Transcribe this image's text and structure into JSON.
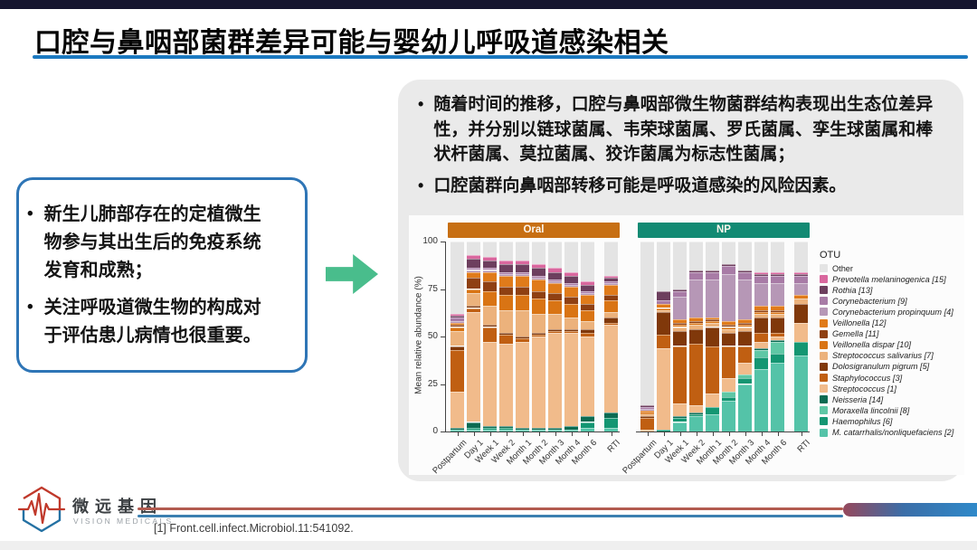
{
  "title": "口腔与鼻咽部菌群差异可能与婴幼儿呼吸道感染相关",
  "left_box": {
    "bullets": [
      "新生儿肺部存在的定植微生物参与其出生后的免疫系统发育和成熟；",
      "关注呼吸道微生物的构成对于评估患儿病情也很重要。"
    ]
  },
  "right_panel": {
    "bullets": [
      "随着时间的推移，口腔与鼻咽部微生物菌群结构表现出生态位差异性，并分别以链球菌属、韦荣球菌属、罗氏菌属、孪生球菌属和棒状杆菌属、莫拉菌属、狡诈菌属为标志性菌属；",
      "口腔菌群向鼻咽部转移可能是呼吸道感染的风险因素。"
    ]
  },
  "footer": {
    "logo_cn": "微远基因",
    "logo_en": "VISION MEDICALS",
    "citation": "[1]  Front.cell.infect.Microbiol.11:541092."
  },
  "chart_data": {
    "type": "bar",
    "subtype": "stacked-100-percent",
    "ylabel": "Mean relative abundance (%)",
    "ylim": [
      0,
      100
    ],
    "yticks": [
      0,
      25,
      50,
      75,
      100
    ],
    "legend_title": "OTU",
    "legend_position": "right",
    "grid": false,
    "categories": [
      "Postpartum",
      "Day 1",
      "Week 1",
      "Week 2",
      "Month 1",
      "Month 2",
      "Month 3",
      "Month 4",
      "Month 6",
      "RTI"
    ],
    "otus": [
      {
        "name": "M. catarrhalis/nonliquefaciens [2]",
        "color": "#54c3a8",
        "italic": true
      },
      {
        "name": "Haemophilus [6]",
        "color": "#149672",
        "italic": true
      },
      {
        "name": "Moraxella lincolnii [8]",
        "color": "#5fc7a5",
        "italic": true
      },
      {
        "name": "Neisseria [14]",
        "color": "#0c6b52",
        "italic": true
      },
      {
        "name": "Streptococcus [1]",
        "color": "#f1bb8b",
        "italic": true
      },
      {
        "name": "Staphylococcus [3]",
        "color": "#c05f12",
        "italic": true
      },
      {
        "name": "Dolosigranulum pigrum [5]",
        "color": "#80380a",
        "italic": true
      },
      {
        "name": "Streptococcus salivarius [7]",
        "color": "#ecb27c",
        "italic": true
      },
      {
        "name": "Veillonella dispar [10]",
        "color": "#d97414",
        "italic": true
      },
      {
        "name": "Gemella [11]",
        "color": "#8f4012",
        "italic": true
      },
      {
        "name": "Veillonella [12]",
        "color": "#e07b1a",
        "italic": true
      },
      {
        "name": "Corynebacterium propinquum [4]",
        "color": "#b697b6",
        "italic": true
      },
      {
        "name": "Corynebacterium [9]",
        "color": "#a87ba6",
        "italic": true
      },
      {
        "name": "Rothia [13]",
        "color": "#6d3f5e",
        "italic": true
      },
      {
        "name": "Prevotella melaninogenica [15]",
        "color": "#d9679e",
        "italic": true
      },
      {
        "name": "Other",
        "color": "#e4e4e4",
        "italic": false
      }
    ],
    "legend_display_order": [
      15,
      14,
      13,
      12,
      11,
      10,
      9,
      8,
      7,
      6,
      5,
      4,
      3,
      2,
      1,
      0
    ],
    "panels": [
      {
        "label": "Oral",
        "header_color": "#c76f13",
        "series": [
          [
            1,
            1,
            1,
            1,
            1,
            1,
            1,
            1,
            2,
            2
          ],
          [
            0,
            1,
            1,
            1,
            0,
            0,
            0,
            0,
            3,
            5
          ],
          [
            0,
            0,
            0,
            0,
            0,
            0,
            0,
            0,
            0,
            0
          ],
          [
            1,
            3,
            1,
            1,
            1,
            1,
            1,
            2,
            3,
            3
          ],
          [
            19,
            58,
            44,
            43,
            45,
            48,
            50,
            49,
            42,
            46
          ],
          [
            22,
            2,
            8,
            5,
            2,
            1,
            1,
            1,
            2,
            1
          ],
          [
            2,
            1,
            1,
            1,
            1,
            1,
            1,
            1,
            2,
            3
          ],
          [
            8,
            7,
            10,
            12,
            14,
            10,
            8,
            6,
            4,
            3
          ],
          [
            2,
            2,
            8,
            8,
            8,
            8,
            7,
            7,
            6,
            6
          ],
          [
            1,
            6,
            5,
            4,
            4,
            4,
            4,
            4,
            3,
            3
          ],
          [
            1,
            3,
            5,
            6,
            6,
            6,
            5,
            5,
            5,
            5
          ],
          [
            1,
            1,
            1,
            1,
            1,
            1,
            1,
            1,
            1,
            1
          ],
          [
            2,
            1,
            1,
            1,
            1,
            1,
            1,
            1,
            1,
            1
          ],
          [
            1,
            5,
            4,
            4,
            4,
            4,
            4,
            4,
            3,
            2
          ],
          [
            1,
            2,
            2,
            2,
            2,
            2,
            2,
            2,
            2,
            1
          ],
          [
            38,
            7,
            8,
            10,
            10,
            12,
            14,
            16,
            21,
            18
          ]
        ]
      },
      {
        "label": "NP",
        "header_color": "#128a73",
        "series": [
          [
            0,
            0,
            5,
            8,
            9,
            16,
            25,
            33,
            36,
            40
          ],
          [
            0,
            1,
            2,
            1,
            4,
            2,
            3,
            6,
            5,
            7
          ],
          [
            0,
            0,
            0,
            0,
            0,
            3,
            2,
            4,
            6,
            0
          ],
          [
            0,
            0,
            1,
            1,
            0,
            0,
            0,
            1,
            1,
            0
          ],
          [
            1,
            43,
            7,
            4,
            7,
            7,
            6,
            3,
            2,
            10
          ],
          [
            6,
            7,
            30,
            32,
            25,
            17,
            9,
            5,
            2,
            0
          ],
          [
            1,
            12,
            8,
            8,
            10,
            7,
            8,
            8,
            8,
            10
          ],
          [
            1,
            1,
            2,
            2,
            2,
            2,
            2,
            2,
            2,
            3
          ],
          [
            1,
            1,
            1,
            1,
            1,
            1,
            1,
            1,
            1,
            0
          ],
          [
            0,
            0,
            1,
            1,
            1,
            1,
            1,
            1,
            1,
            0
          ],
          [
            1,
            2,
            2,
            2,
            1,
            2,
            2,
            2,
            2,
            2
          ],
          [
            1,
            0,
            12,
            20,
            20,
            25,
            21,
            12,
            12,
            6
          ],
          [
            1,
            2,
            3,
            4,
            4,
            4,
            4,
            4,
            4,
            4
          ],
          [
            1,
            5,
            1,
            1,
            1,
            1,
            1,
            1,
            1,
            1
          ],
          [
            0,
            0,
            0,
            0,
            0,
            0,
            0,
            1,
            1,
            1
          ],
          [
            86,
            26,
            25,
            15,
            15,
            12,
            15,
            16,
            16,
            16
          ]
        ]
      }
    ]
  }
}
